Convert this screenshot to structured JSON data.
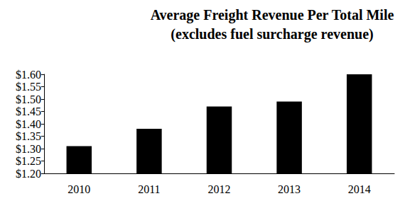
{
  "chart_data": {
    "type": "bar",
    "title": "Average Freight Revenue Per Total Mile",
    "subtitle": "(excludes fuel surcharge revenue)",
    "categories": [
      "2010",
      "2011",
      "2012",
      "2013",
      "2014"
    ],
    "values": [
      1.31,
      1.38,
      1.47,
      1.49,
      1.6
    ],
    "color": "#000000",
    "ylim": [
      1.2,
      1.6
    ],
    "yticks": [
      {
        "value": 1.2,
        "label": "$1.20"
      },
      {
        "value": 1.25,
        "label": "$1.25"
      },
      {
        "value": 1.3,
        "label": "$1.30"
      },
      {
        "value": 1.35,
        "label": "$1.35"
      },
      {
        "value": 1.4,
        "label": "$1.40"
      },
      {
        "value": 1.45,
        "label": "$1.45"
      },
      {
        "value": 1.5,
        "label": "$1.50"
      },
      {
        "value": 1.55,
        "label": "$1.55"
      },
      {
        "value": 1.6,
        "label": "$1.60"
      }
    ],
    "grid": false
  }
}
